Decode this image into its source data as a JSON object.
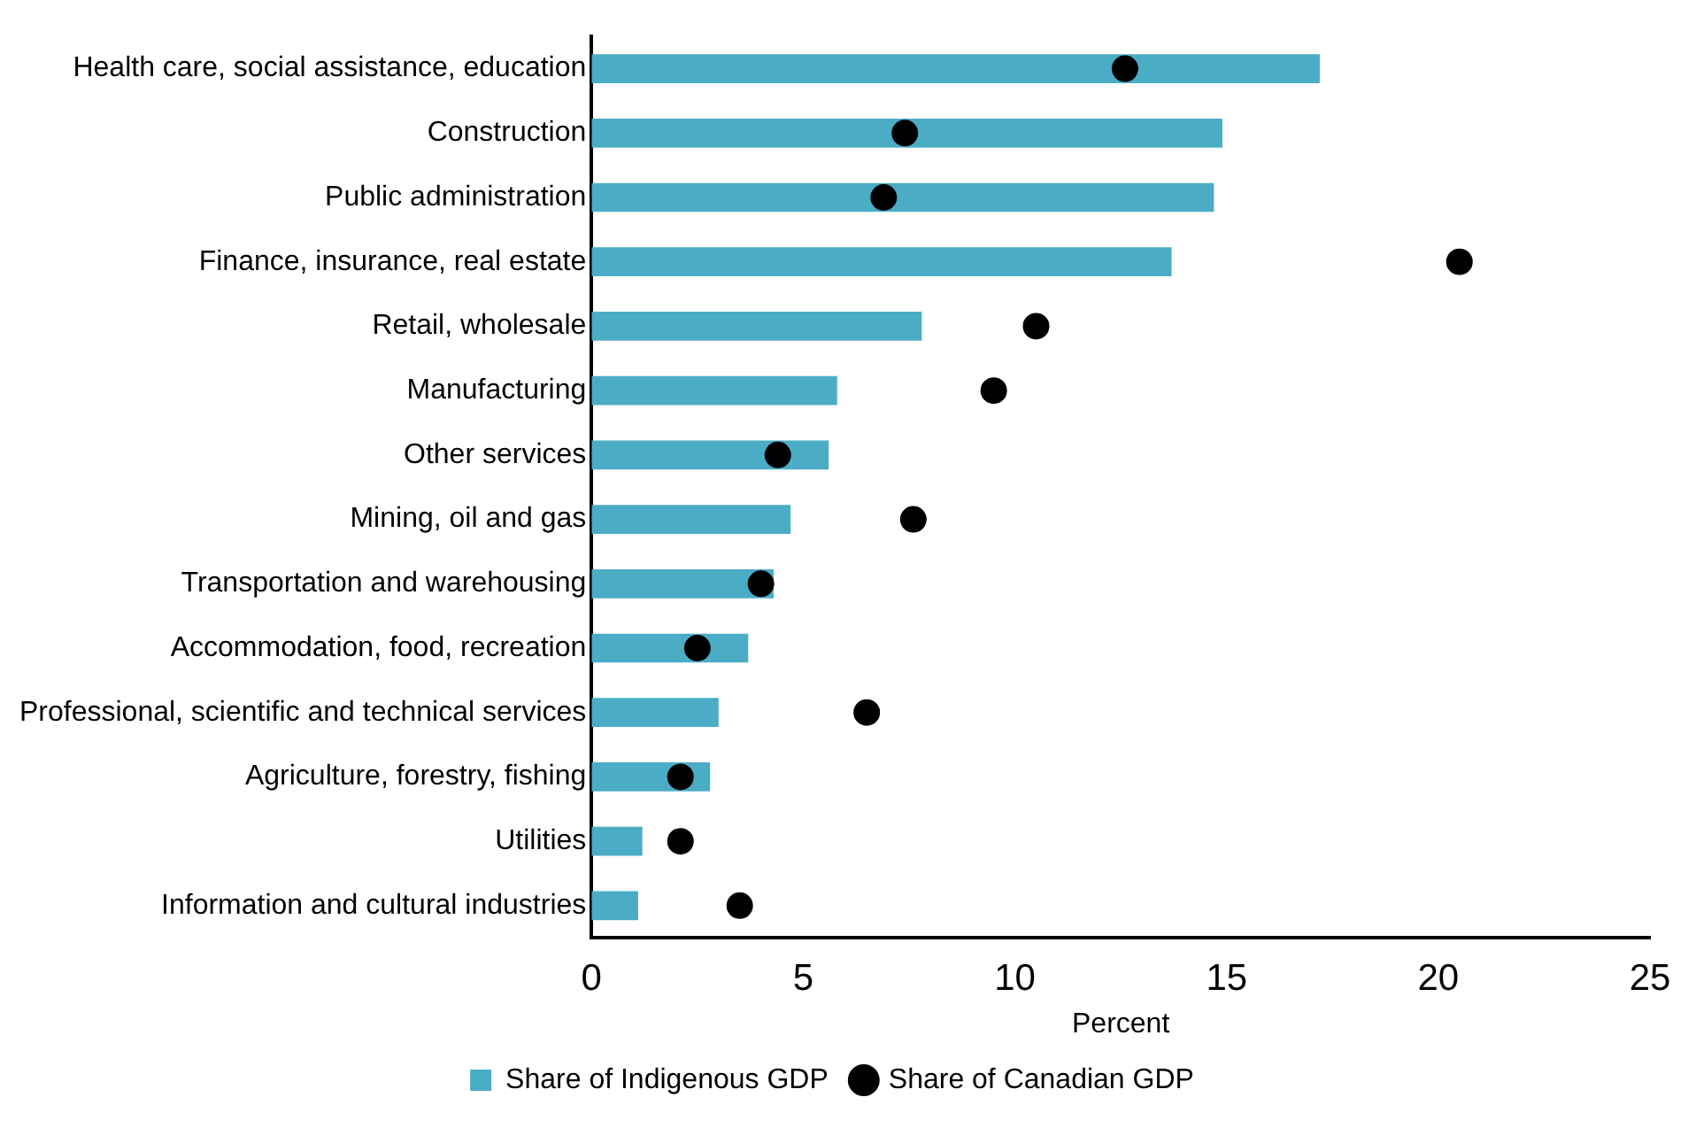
{
  "chart_data": {
    "type": "bar",
    "orientation": "horizontal",
    "categories": [
      "Health care, social assistance, education",
      "Construction",
      "Public administration",
      "Finance, insurance, real estate",
      "Retail, wholesale",
      "Manufacturing",
      "Other services",
      "Mining, oil and gas",
      "Transportation and warehousing",
      "Accommodation, food, recreation",
      "Professional, scientific and technical services",
      "Agriculture, forestry, fishing",
      "Utilities",
      "Information and cultural industries"
    ],
    "series": [
      {
        "name": "Share of Indigenous GDP",
        "color": "#4bacc6",
        "values": [
          17.2,
          14.9,
          14.7,
          13.7,
          7.8,
          5.8,
          5.6,
          4.7,
          4.3,
          3.7,
          3.0,
          2.8,
          1.2,
          1.1
        ]
      },
      {
        "name": "Share of Canadian GDP",
        "type": "scatter",
        "color": "#000000",
        "values": [
          12.6,
          7.4,
          6.9,
          20.5,
          10.5,
          9.5,
          4.4,
          7.6,
          4.0,
          2.5,
          6.5,
          2.1,
          2.1,
          3.5
        ]
      }
    ],
    "xlabel": "Percent",
    "xlim": [
      0,
      25
    ],
    "xticks": [
      0,
      5,
      10,
      15,
      20,
      25
    ],
    "grid": false,
    "legend": "bottom",
    "marker": "circle"
  }
}
